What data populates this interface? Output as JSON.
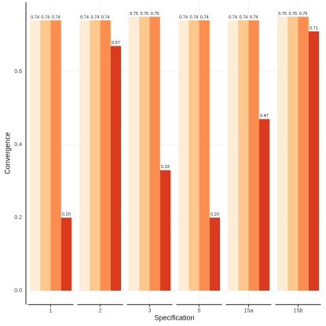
{
  "chart_data": {
    "type": "bar",
    "x_label": "Specification",
    "y_label": "Convergence",
    "categories": [
      "1",
      "2",
      "3",
      "5",
      "15a",
      "15b"
    ],
    "series": [
      {
        "color": "#fdedd6",
        "values": [
          0.74,
          0.74,
          0.75,
          0.74,
          0.74,
          0.75
        ],
        "value_labels": [
          "0.74",
          "0.74",
          "0.75",
          "0.74",
          "0.74",
          "0.75"
        ]
      },
      {
        "color": "#fdc88d",
        "values": [
          0.74,
          0.74,
          0.75,
          0.74,
          0.74,
          0.75
        ],
        "value_labels": [
          "0.74",
          "0.74",
          "0.75",
          "0.74",
          "0.74",
          "0.75"
        ]
      },
      {
        "color": "#fb8d50",
        "values": [
          0.74,
          0.74,
          0.75,
          0.74,
          0.74,
          0.75
        ],
        "value_labels": [
          "0.74",
          "0.74",
          "0.75",
          "0.74",
          "0.74",
          "0.75"
        ]
      },
      {
        "color": "#dc3a1f",
        "values": [
          0.2,
          0.67,
          0.33,
          0.2,
          0.47,
          0.71
        ],
        "value_labels": [
          "0.20",
          "0.67",
          "0.33",
          "0.20",
          "0.47",
          "0.71"
        ]
      }
    ],
    "ylim": [
      -0.038,
      0.79
    ],
    "yticks": [
      {
        "value": 0,
        "label": "0.0"
      },
      {
        "value": 0.2,
        "label": "0.2"
      },
      {
        "value": 0.4,
        "label": "0.4"
      },
      {
        "value": 0.6,
        "label": "0.6"
      }
    ],
    "grid": true
  }
}
